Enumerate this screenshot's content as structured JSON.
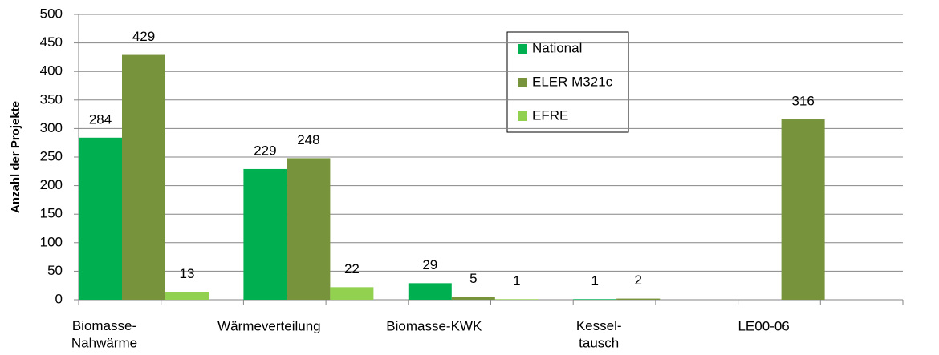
{
  "chart_data": {
    "type": "bar",
    "y_label": "Anzahl der Projekte",
    "categories": [
      "Biomasse-\nNahwärme",
      "Wärmeverteilung",
      "Biomasse-KWK",
      "Kessel-\ntausch",
      "LE00-06"
    ],
    "series": [
      {
        "name": "National",
        "color": "#00b050",
        "values": [
          284,
          229,
          29,
          1,
          null
        ]
      },
      {
        "name": "ELER M321c",
        "color": "#77933c",
        "values": [
          429,
          248,
          5,
          2,
          316
        ]
      },
      {
        "name": "EFRE",
        "color": "#92d050",
        "values": [
          13,
          22,
          1,
          null,
          null
        ]
      }
    ],
    "ylim": [
      0,
      500
    ],
    "yticks": [
      0,
      50,
      100,
      150,
      200,
      250,
      300,
      350,
      400,
      450,
      500
    ],
    "grid": true,
    "legend": "top-center"
  }
}
